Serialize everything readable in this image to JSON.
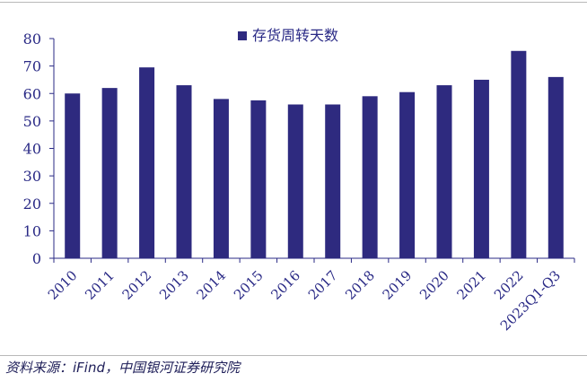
{
  "chart_data": {
    "type": "bar",
    "categories": [
      "2010",
      "2011",
      "2012",
      "2013",
      "2014",
      "2015",
      "2016",
      "2017",
      "2018",
      "2019",
      "2020",
      "2021",
      "2022",
      "2023Q1-Q3"
    ],
    "series": [
      {
        "name": "存货周转天数",
        "values": [
          60,
          62,
          69.5,
          63,
          58,
          57.5,
          56,
          56,
          59,
          60.5,
          63,
          65,
          75.5,
          66
        ]
      }
    ],
    "ylim": [
      0,
      80
    ],
    "yticks": [
      0,
      10,
      20,
      30,
      40,
      50,
      60,
      70,
      80
    ],
    "legend_position": "top-center",
    "grid": false,
    "colors": {
      "bar": "#2e2a7f",
      "axis": "#2a2a86"
    }
  },
  "source": "资料来源：iFind，中国银河证券研究院"
}
